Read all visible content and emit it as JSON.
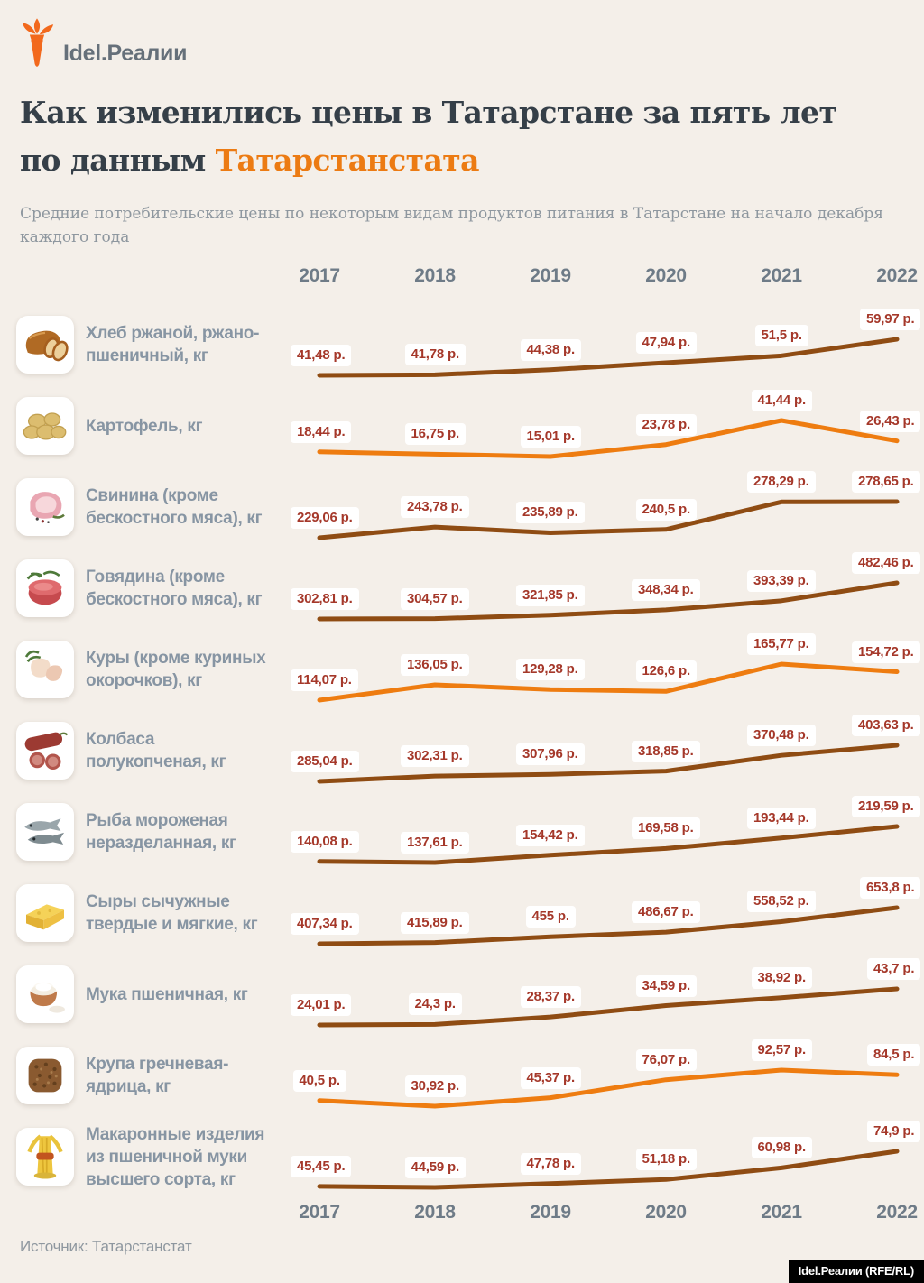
{
  "logo": {
    "brand": "Idel.Реалии"
  },
  "header": {
    "title_line1": "Как изменились цены в Татарстане за пять лет",
    "title_line2_prefix": "по данным ",
    "title_line2_accent": "Татарстанстата",
    "subtitle_line1": "Средние потребительские цены по некоторым видам продуктов питания в Татарстане на начало декабря",
    "subtitle_line2": "каждого года"
  },
  "palette": {
    "background": "#f4efe9",
    "accent_orange": "#ec7b13",
    "line_brown": "#8f4c13",
    "line_orange": "#ee7c10",
    "value_red": "#a5382a",
    "title_dark": "#353f48",
    "label_gray": "#8795a3",
    "year_gray": "#6e7b87",
    "badge_bg": "#000000",
    "badge_text": "#ffffff",
    "logo_orange": "#f2691d"
  },
  "footer": {
    "source": "Источник: Татарстанстат",
    "badge": "Idel.Реалии (RFE/RL)"
  },
  "chart_data": {
    "type": "line",
    "categories": [
      "2017",
      "2018",
      "2019",
      "2020",
      "2021",
      "2022"
    ],
    "unit": "р.",
    "legend_position": "none",
    "grid": false,
    "series": [
      {
        "name": "Хлеб ржаной, ржано-пшеничный, кг",
        "icon": "bread-icon",
        "color": "brown",
        "values": [
          41.48,
          41.78,
          44.38,
          47.94,
          51.5,
          59.97
        ],
        "labels": [
          "41,48 р.",
          "41,78 р.",
          "44,38 р.",
          "47,94 р.",
          "51,5 р.",
          "59,97 р."
        ],
        "label_lines": [
          "Хлеб ржаной, ржано-",
          "пшеничный, кг"
        ]
      },
      {
        "name": "Картофель, кг",
        "icon": "potato-icon",
        "color": "orange",
        "values": [
          18.44,
          16.75,
          15.01,
          23.78,
          41.44,
          26.43
        ],
        "labels": [
          "18,44 р.",
          "16,75 р.",
          "15,01 р.",
          "23,78 р.",
          "41,44 р.",
          "26,43 р."
        ],
        "label_lines": [
          "Картофель, кг"
        ]
      },
      {
        "name": "Свинина (кроме бескостного мяса), кг",
        "icon": "pork-icon",
        "color": "brown",
        "values": [
          229.06,
          243.78,
          235.89,
          240.5,
          278.29,
          278.65
        ],
        "labels": [
          "229,06 р.",
          "243,78 р.",
          "235,89 р.",
          "240,5 р.",
          "278,29 р.",
          "278,65 р."
        ],
        "label_lines": [
          "Свинина (кроме",
          "бескостного мяса), кг"
        ]
      },
      {
        "name": "Говядина (кроме бескостного мяса), кг",
        "icon": "beef-icon",
        "color": "brown",
        "values": [
          302.81,
          304.57,
          321.85,
          348.34,
          393.39,
          482.46
        ],
        "labels": [
          "302,81 р.",
          "304,57 р.",
          "321,85 р.",
          "348,34 р.",
          "393,39 р.",
          "482,46 р."
        ],
        "label_lines": [
          "Говядина (кроме",
          "бескостного мяса), кг"
        ]
      },
      {
        "name": "Куры (кроме куриных окорочков), кг",
        "icon": "chicken-icon",
        "color": "orange",
        "values": [
          114.07,
          136.05,
          129.28,
          126.6,
          165.77,
          154.72
        ],
        "labels": [
          "114,07 р.",
          "136,05 р.",
          "129,28 р.",
          "126,6 р.",
          "165,77 р.",
          "154,72 р."
        ],
        "label_lines": [
          "Куры (кроме куриных",
          "окорочков), кг"
        ]
      },
      {
        "name": "Колбаса полукопченая, кг",
        "icon": "sausage-icon",
        "color": "brown",
        "values": [
          285.04,
          302.31,
          307.96,
          318.85,
          370.48,
          403.63
        ],
        "labels": [
          "285,04 р.",
          "302,31 р.",
          "307,96 р.",
          "318,85 р.",
          "370,48 р.",
          "403,63 р."
        ],
        "label_lines": [
          "Колбаса",
          "полукопченая, кг"
        ]
      },
      {
        "name": "Рыба мороженая неразделанная, кг",
        "icon": "fish-icon",
        "color": "brown",
        "values": [
          140.08,
          137.61,
          154.42,
          169.58,
          193.44,
          219.59
        ],
        "labels": [
          "140,08 р.",
          "137,61 р.",
          "154,42 р.",
          "169,58 р.",
          "193,44 р.",
          "219,59 р."
        ],
        "label_lines": [
          "Рыба мороженая",
          "неразделанная, кг"
        ]
      },
      {
        "name": "Сыры сычужные твердые и мягкие, кг",
        "icon": "cheese-icon",
        "color": "brown",
        "values": [
          407.34,
          415.89,
          455,
          486.67,
          558.52,
          653.8
        ],
        "labels": [
          "407,34 р.",
          "415,89 р.",
          "455 р.",
          "486,67 р.",
          "558,52 р.",
          "653,8 р."
        ],
        "label_lines": [
          "Сыры сычужные",
          "твердые и мягкие, кг"
        ]
      },
      {
        "name": "Мука пшеничная, кг",
        "icon": "flour-icon",
        "color": "brown",
        "values": [
          24.01,
          24.3,
          28.37,
          34.59,
          38.92,
          43.7
        ],
        "labels": [
          "24,01 р.",
          "24,3 р.",
          "28,37 р.",
          "34,59 р.",
          "38,92 р.",
          "43,7 р."
        ],
        "label_lines": [
          "Мука пшеничная, кг"
        ]
      },
      {
        "name": "Крупа гречневая-ядрица, кг",
        "icon": "buckwheat-icon",
        "color": "orange",
        "values": [
          40.5,
          30.92,
          45.37,
          76.07,
          92.57,
          84.5
        ],
        "labels": [
          "40,5 р.",
          "30,92 р.",
          "45,37 р.",
          "76,07 р.",
          "92,57 р.",
          "84,5 р."
        ],
        "label_lines": [
          "Крупа гречневая-",
          "ядрица, кг"
        ]
      },
      {
        "name": "Макаронные изделия из пшеничной муки высшего сорта, кг",
        "icon": "pasta-icon",
        "color": "brown",
        "values": [
          45.45,
          44.59,
          47.78,
          51.18,
          60.98,
          74.9
        ],
        "labels": [
          "45,45 р.",
          "44,59 р.",
          "47,78 р.",
          "51,18 р.",
          "60,98 р.",
          "74,9 р."
        ],
        "label_lines": [
          "Макаронные изделия",
          "из пшеничной муки",
          "высшего сорта, кг"
        ]
      }
    ]
  }
}
